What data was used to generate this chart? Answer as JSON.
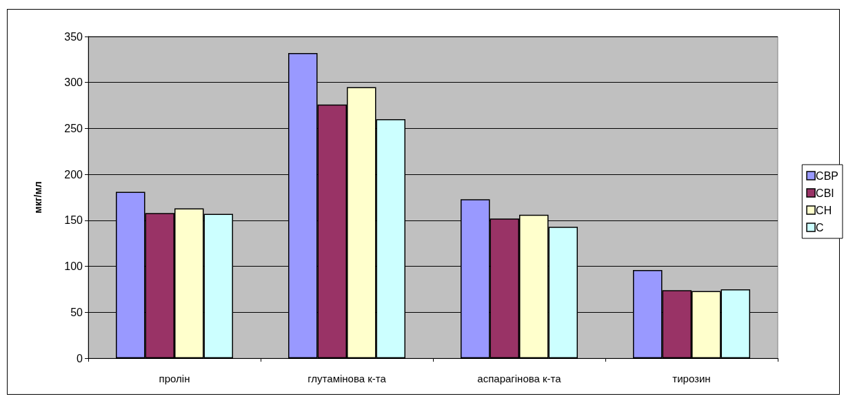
{
  "chart_data": {
    "type": "bar",
    "ylabel": "мкг/мл",
    "categories": [
      "пролін",
      "глутамінова к-та",
      "аспарагінова к-та",
      "тирозин"
    ],
    "series": [
      {
        "name": "СВР",
        "color": "#9999ff",
        "values": [
          181,
          332,
          173,
          96
        ]
      },
      {
        "name": "СВІ",
        "color": "#993366",
        "values": [
          158,
          276,
          152,
          74
        ]
      },
      {
        "name": "СН",
        "color": "#ffffcc",
        "values": [
          163,
          295,
          156,
          73
        ]
      },
      {
        "name": "С",
        "color": "#ccffff",
        "values": [
          157,
          260,
          143,
          75
        ]
      }
    ],
    "ylim": [
      0,
      350
    ],
    "yticks": [
      0,
      50,
      100,
      150,
      200,
      250,
      300,
      350
    ],
    "grid": "y",
    "legend": "right"
  }
}
